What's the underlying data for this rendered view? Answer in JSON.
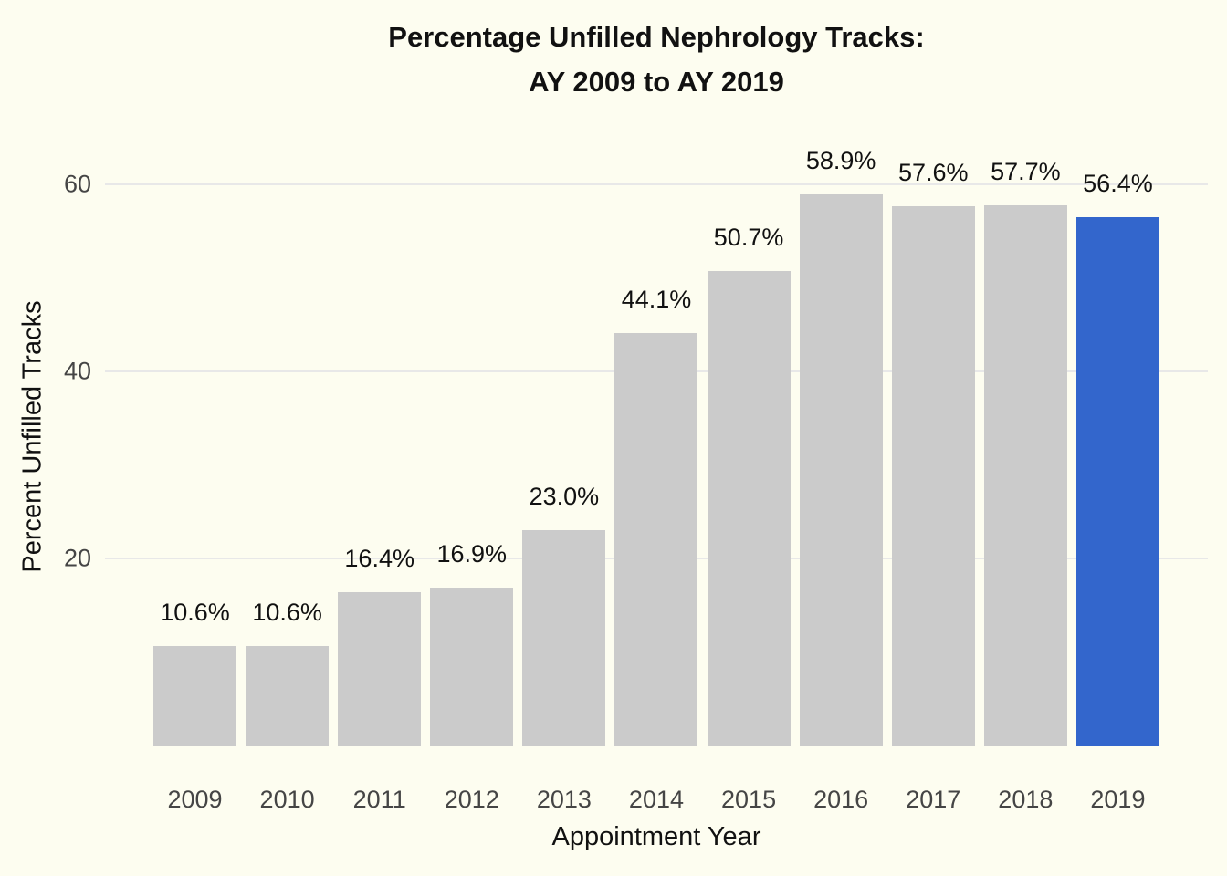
{
  "title": {
    "line1": "Percentage Unfilled Nephrology Tracks:",
    "line2": "AY 2009 to AY 2019"
  },
  "chart_data": {
    "type": "bar",
    "title": "Percentage Unfilled Nephrology Tracks: AY 2009 to AY 2019",
    "xlabel": "Appointment Year",
    "ylabel": "Percent Unfilled Tracks",
    "categories": [
      "2009",
      "2010",
      "2011",
      "2012",
      "2013",
      "2014",
      "2015",
      "2016",
      "2017",
      "2018",
      "2019"
    ],
    "values": [
      10.6,
      10.6,
      16.4,
      16.9,
      23.0,
      44.1,
      50.7,
      58.9,
      57.6,
      57.7,
      56.4
    ],
    "bar_labels": [
      "10.6%",
      "10.6%",
      "16.4%",
      "16.9%",
      "23.0%",
      "44.1%",
      "50.7%",
      "58.9%",
      "57.6%",
      "57.7%",
      "56.4%"
    ],
    "ylim": [
      0,
      66
    ],
    "yticks": [
      20,
      40,
      60
    ],
    "grid": true,
    "legend": false,
    "highlight_category": "2019",
    "colors": {
      "background": "#FDFDF0",
      "bar": "#CBCBCB",
      "highlight_bar": "#3366CC",
      "gridline": "#E8E8E8",
      "tick_label": "#454545",
      "text": "#111111"
    }
  }
}
